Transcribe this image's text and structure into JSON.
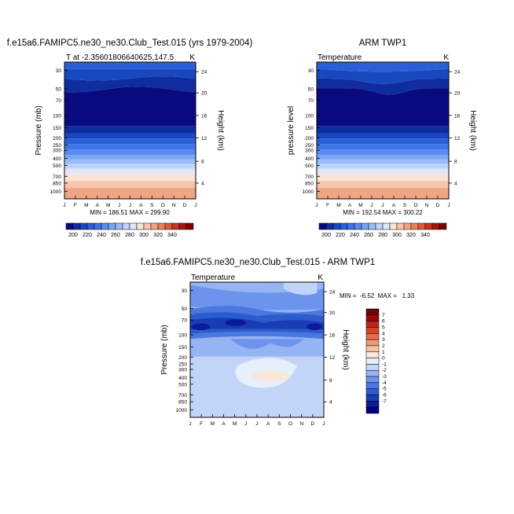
{
  "chart_data": [
    {
      "type": "heatmap",
      "panel": "top-left",
      "title": "f.e15a6.FAMIPC5.ne30_ne30.Club_Test.015 (yrs 1979-2004)",
      "subtitle_left": "T at -2.35601806640625,147.5",
      "subtitle_right": "K",
      "ylabel": "Pressure (mb)",
      "ylabel_right": "Height (km)",
      "xlabel": "",
      "x_ticks": [
        "J",
        "F",
        "M",
        "A",
        "M",
        "J",
        "J",
        "A",
        "S",
        "O",
        "N",
        "D",
        "J"
      ],
      "y_ticks": [
        "30",
        "50",
        "70",
        "100",
        "150",
        "200",
        "250",
        "300",
        "400",
        "500",
        "700",
        "850",
        "1000"
      ],
      "y_ticks_right": [
        "24",
        "20",
        "16",
        "12",
        "8",
        "4"
      ],
      "stats": "MIN = 186.51  MAX = 299.90",
      "colorbar_labels": [
        "200",
        "220",
        "240",
        "260",
        "280",
        "300",
        "320",
        "340"
      ]
    },
    {
      "type": "heatmap",
      "panel": "top-right",
      "title": "ARM TWP1",
      "subtitle_left": "Temperature",
      "subtitle_right": "K",
      "ylabel": "pressure level",
      "ylabel_right": "Height (km)",
      "xlabel": "",
      "x_ticks": [
        "J",
        "F",
        "M",
        "A",
        "M",
        "J",
        "J",
        "A",
        "S",
        "O",
        "N",
        "D",
        "J"
      ],
      "y_ticks": [
        "30",
        "50",
        "70",
        "100",
        "150",
        "200",
        "250",
        "300",
        "400",
        "500",
        "700",
        "850",
        "1000"
      ],
      "y_ticks_right": [
        "24",
        "20",
        "16",
        "12",
        "8",
        "4"
      ],
      "stats": "MIN = 192.54  MAX = 300.22",
      "colorbar_labels": [
        "200",
        "220",
        "240",
        "260",
        "280",
        "300",
        "320",
        "340"
      ]
    },
    {
      "type": "heatmap",
      "panel": "bottom-difference",
      "title": "f.e15a6.FAMIPC5.ne30_ne30.Club_Test.015 - ARM TWP1",
      "subtitle_left": "Temperature",
      "subtitle_right": "K",
      "ylabel": "Pressure (mb)",
      "ylabel_right": "Height (km)",
      "xlabel": "",
      "x_ticks": [
        "J",
        "F",
        "M",
        "A",
        "M",
        "J",
        "J",
        "A",
        "S",
        "O",
        "N",
        "D",
        "J"
      ],
      "y_ticks": [
        "30",
        "50",
        "70",
        "100",
        "150",
        "200",
        "250",
        "300",
        "400",
        "500",
        "700",
        "850",
        "1000"
      ],
      "y_ticks_right": [
        "24",
        "20",
        "16",
        "12",
        "8",
        "4"
      ],
      "stats": "MIN =  -6.52  MAX =   1.33",
      "colorbar_labels": [
        "7",
        "6",
        "5",
        "4",
        "3",
        "2",
        "1",
        "0",
        "-1",
        "-2",
        "-3",
        "-4",
        "-5",
        "-6",
        "-7"
      ]
    }
  ],
  "colors": {
    "temp_scale": [
      "#0a0a80",
      "#102da0",
      "#1848c0",
      "#2a5fd8",
      "#3d75e8",
      "#5a8cf0",
      "#7aa5f5",
      "#9bbcf7",
      "#bcd4f9",
      "#dbe8fb",
      "#fbe3d5",
      "#f7c6ac",
      "#f0a585",
      "#e8805e",
      "#dc5a3c",
      "#c83220",
      "#a51410",
      "#800000"
    ],
    "diff_scale": [
      "#000080",
      "#0b1a9a",
      "#1a3db5",
      "#2c5ccc",
      "#4a78e0",
      "#6c94ec",
      "#94b4f3",
      "#c2d5f8",
      "#e8effc",
      "#fbe6d8",
      "#f5c2a5",
      "#ef9a78",
      "#e66c4a",
      "#d84428",
      "#c02418",
      "#9a0808",
      "#700000"
    ]
  }
}
